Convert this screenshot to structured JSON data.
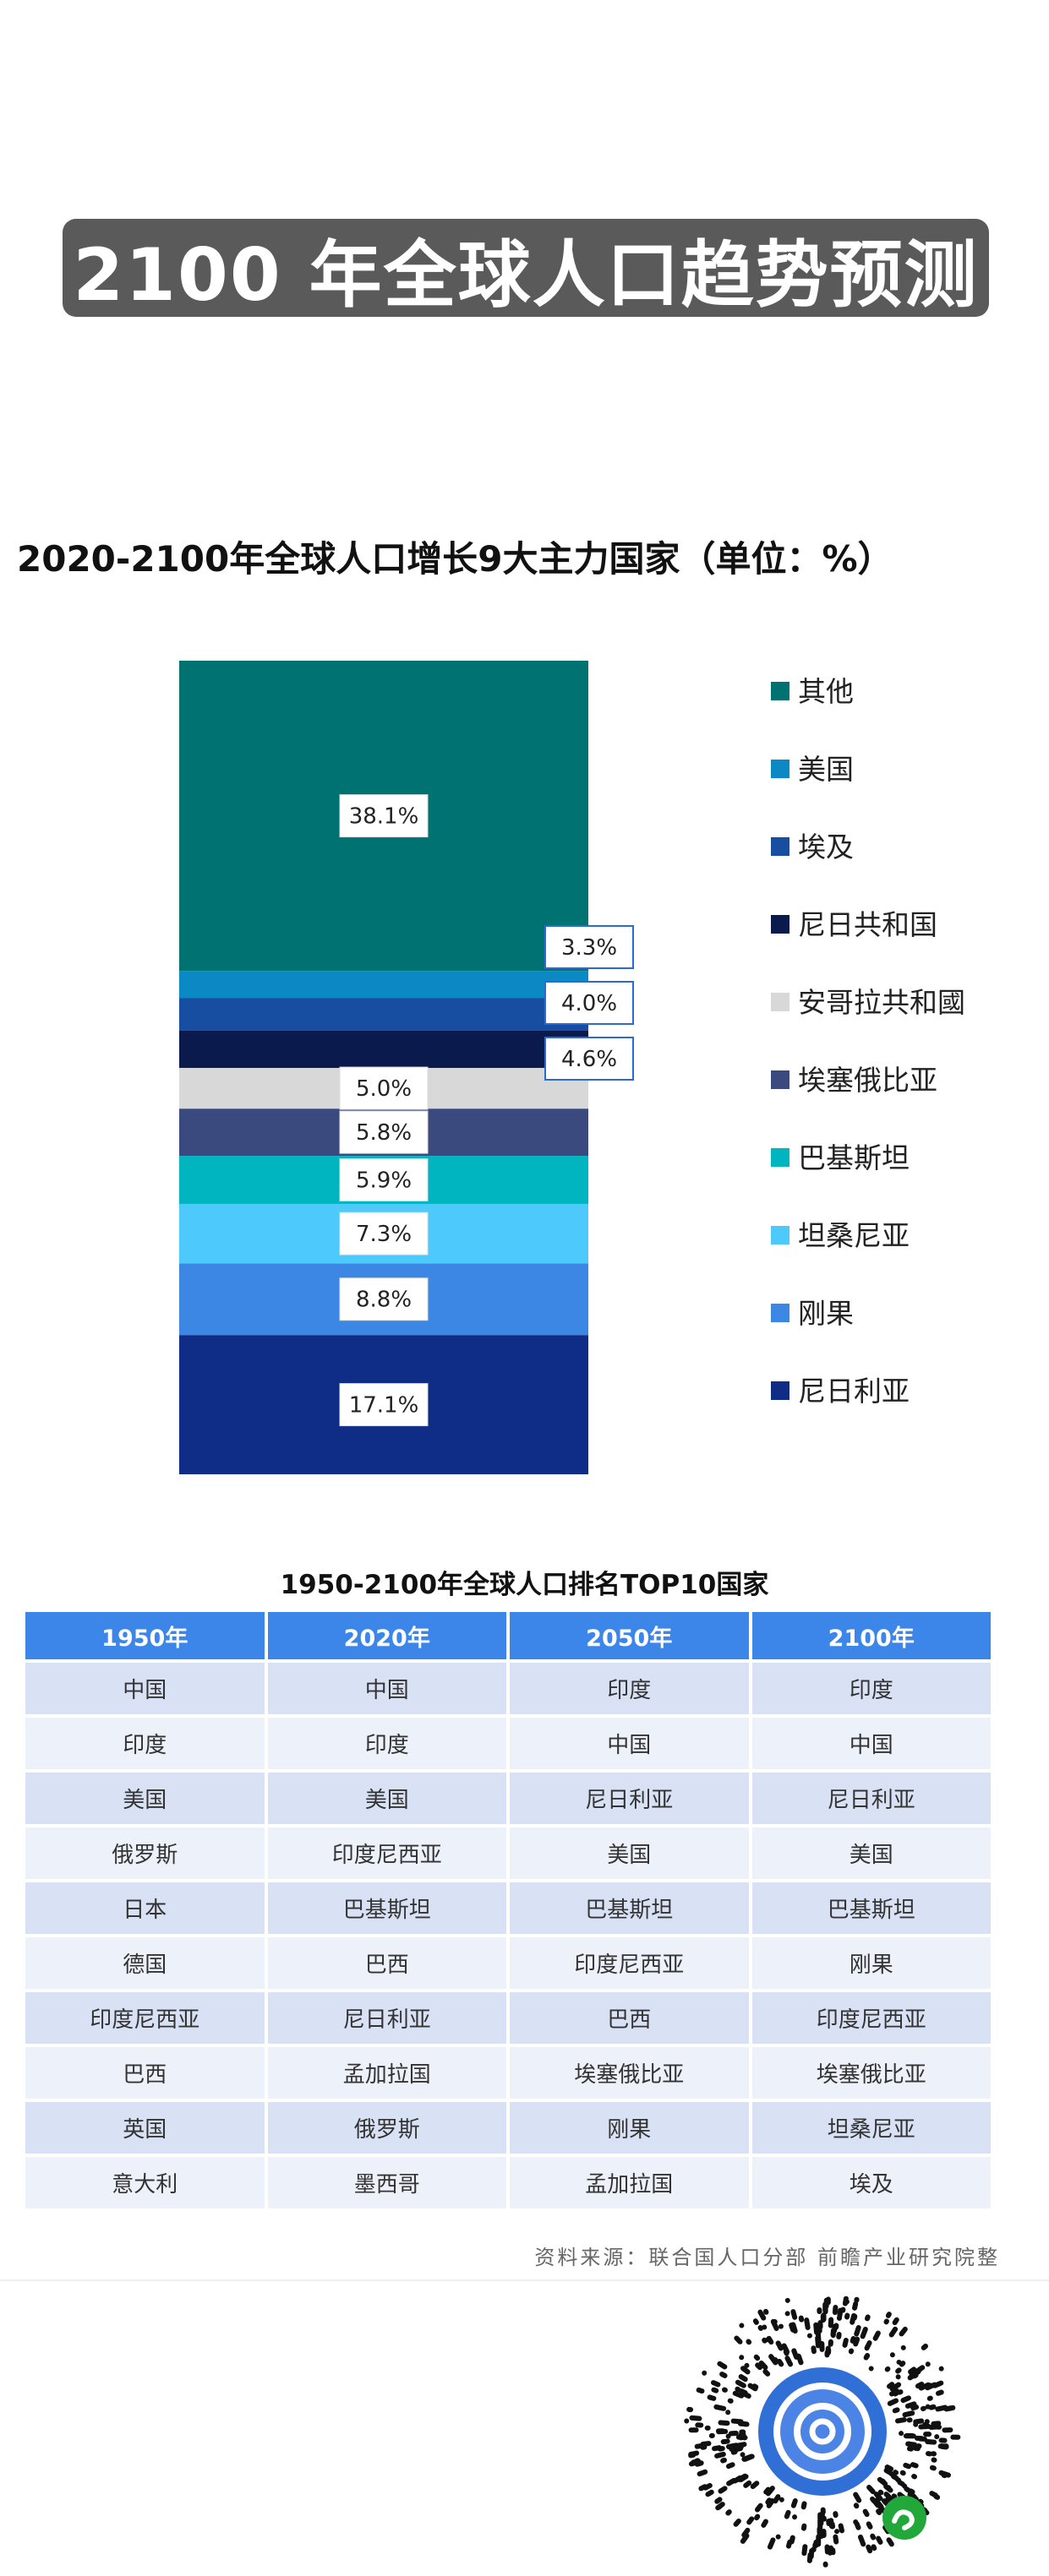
{
  "banner": {
    "title": "2100 年全球人口趋势预测"
  },
  "chart_data": {
    "type": "stacked-bar",
    "title": "2020-2100年全球人口增长9大主力国家（单位：%）",
    "segments_bottom_to_top": [
      {
        "name": "尼日利亚",
        "value": 17.1,
        "label": "17.1%",
        "color": "#0f2c86"
      },
      {
        "name": "刚果",
        "value": 8.8,
        "label": "8.8%",
        "color": "#3c86e4"
      },
      {
        "name": "坦桑尼亚",
        "value": 7.3,
        "label": "7.3%",
        "color": "#4dcafb"
      },
      {
        "name": "巴基斯坦",
        "value": 5.9,
        "label": "5.9%",
        "color": "#00b5c0"
      },
      {
        "name": "埃塞俄比亚",
        "value": 5.8,
        "label": "5.8%",
        "color": "#3a4a7e"
      },
      {
        "name": "安哥拉共和國",
        "value": 5.0,
        "label": "5.0%",
        "color": "#d8d8d8"
      },
      {
        "name": "尼日共和国",
        "value": 4.6,
        "label": "4.6%",
        "color": "#0b1a4c"
      },
      {
        "name": "埃及",
        "value": 4.0,
        "label": "4.0%",
        "color": "#174ea1"
      },
      {
        "name": "美国",
        "value": 3.3,
        "label": "3.3%",
        "color": "#0a89c4"
      },
      {
        "name": "其他",
        "value": 38.1,
        "label": "38.1%",
        "color": "#007272"
      }
    ],
    "legend_order": [
      "其他",
      "美国",
      "埃及",
      "尼日共和国",
      "安哥拉共和國",
      "埃塞俄比亚",
      "巴基斯坦",
      "坦桑尼亚",
      "刚果",
      "尼日利亚"
    ],
    "legend_position": "right"
  },
  "table": {
    "title": "1950-2100年全球人口排名TOP10国家",
    "headers": [
      "1950年",
      "2020年",
      "2050年",
      "2100年"
    ],
    "rows": [
      [
        "中国",
        "中国",
        "印度",
        "印度"
      ],
      [
        "印度",
        "印度",
        "中国",
        "中国"
      ],
      [
        "美国",
        "美国",
        "尼日利亚",
        "尼日利亚"
      ],
      [
        "俄罗斯",
        "印度尼西亚",
        "美国",
        "美国"
      ],
      [
        "日本",
        "巴基斯坦",
        "巴基斯坦",
        "巴基斯坦"
      ],
      [
        "德国",
        "巴西",
        "印度尼西亚",
        "刚果"
      ],
      [
        "印度尼西亚",
        "尼日利亚",
        "巴西",
        "印度尼西亚"
      ],
      [
        "巴西",
        "孟加拉国",
        "埃塞俄比亚",
        "埃塞俄比亚"
      ],
      [
        "英国",
        "俄罗斯",
        "刚果",
        "坦桑尼亚"
      ],
      [
        "意大利",
        "墨西哥",
        "孟加拉国",
        "埃及"
      ]
    ]
  },
  "footer": {
    "source": "资料来源：联合国人口分部 前瞻产业研究院整"
  },
  "colors": {
    "banner_bg": "#5a5a5a",
    "header_bg": "#3b86e8",
    "row_odd": "#d9e1f5",
    "row_even": "#edf1fa"
  }
}
